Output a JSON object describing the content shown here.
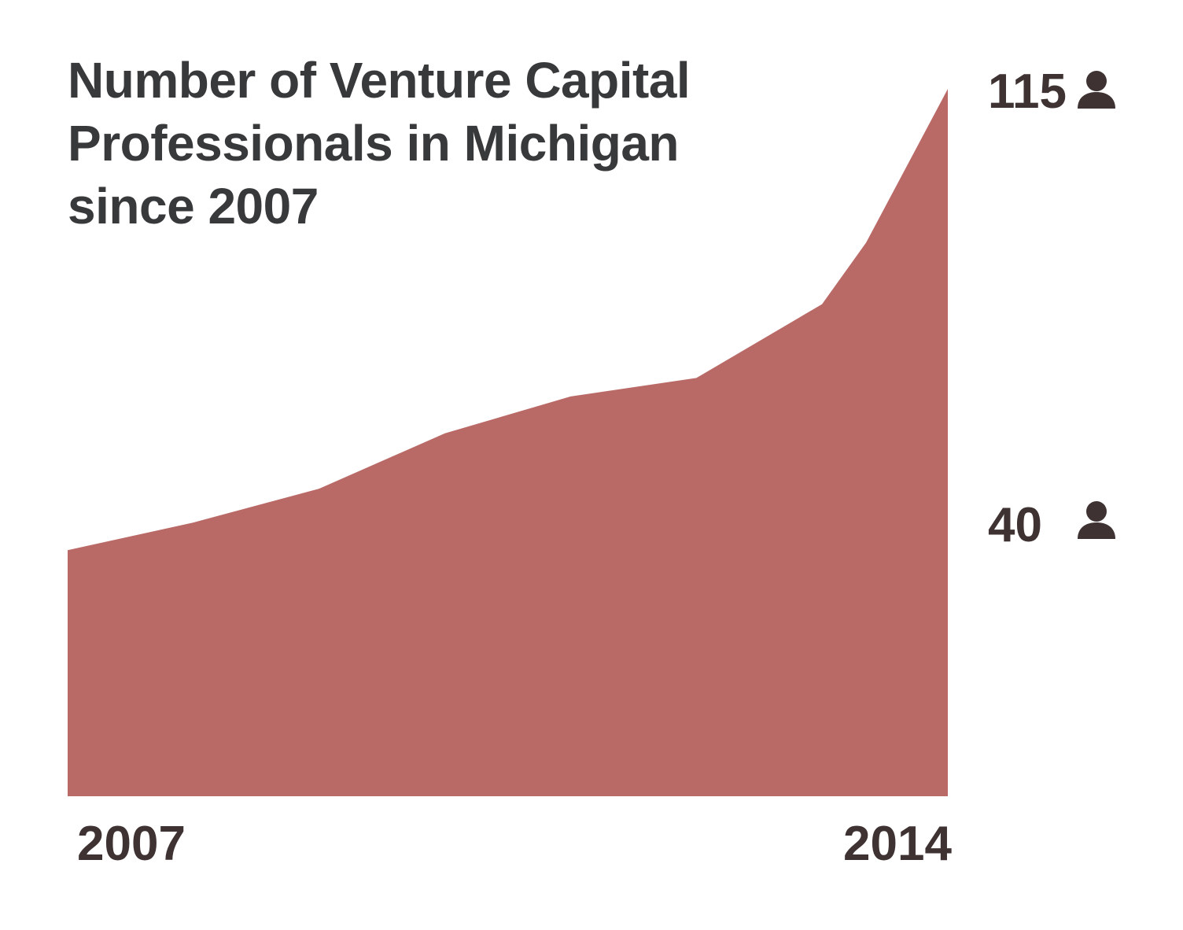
{
  "chart_data": {
    "type": "area",
    "title": "Number of Venture Capital Professionals in Michigan since 2007",
    "x": [
      2007,
      2008,
      2009,
      2010,
      2011,
      2012,
      2013,
      2013.35,
      2014
    ],
    "y": [
      40,
      44.5,
      50,
      59,
      65,
      68,
      80,
      90,
      115
    ],
    "x_tick_labels": [
      "2007",
      "2014"
    ],
    "value_labels": [
      {
        "value": "40",
        "icon": "person-icon"
      },
      {
        "value": "115",
        "icon": "person-icon"
      }
    ],
    "ylim": [
      0,
      115
    ],
    "xlim": [
      2007,
      2014
    ],
    "xlabel": "",
    "ylabel": "",
    "grid": false,
    "legend": "none",
    "colors": {
      "area_fill": "#b96a67",
      "title_text": "#38393b",
      "label_text": "#3f3232",
      "icon": "#3f3232"
    }
  }
}
